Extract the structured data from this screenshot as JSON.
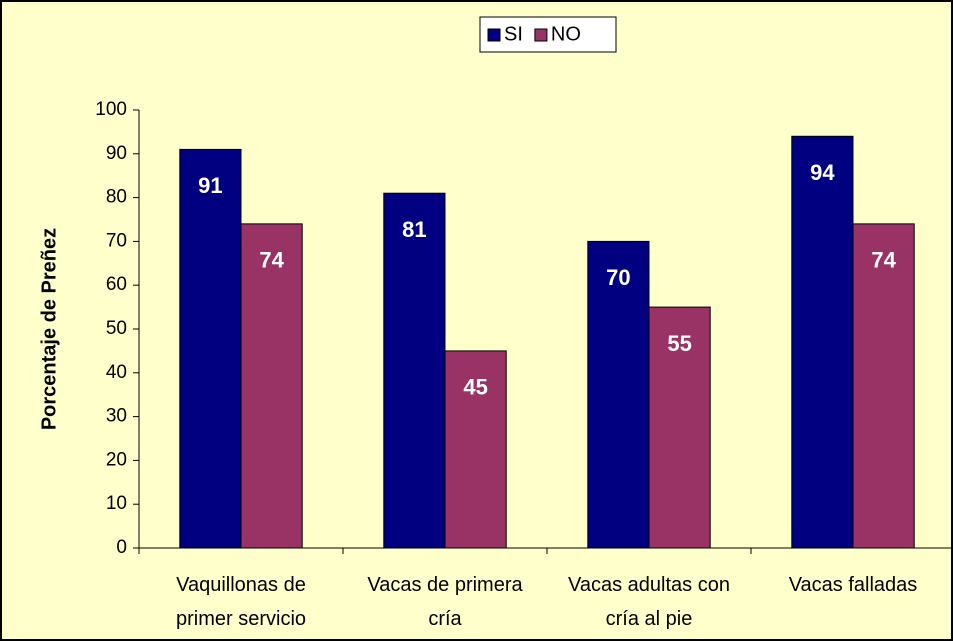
{
  "chart_data": {
    "type": "bar",
    "y_label": "Porcentaje de Preñez",
    "categories": [
      "Vaquillonas de primer servicio",
      "Vacas de primera cría",
      "Vacas adultas con cría al pie",
      "Vacas falladas"
    ],
    "series": [
      {
        "name": "SI",
        "color": "#000080",
        "values": [
          91,
          81,
          70,
          94
        ]
      },
      {
        "name": "NO",
        "color": "#993366",
        "values": [
          74,
          45,
          55,
          74
        ]
      }
    ],
    "ylim": [
      0,
      100
    ],
    "yticks": [
      0,
      10,
      20,
      30,
      40,
      50,
      60,
      70,
      80,
      90,
      100
    ],
    "legend": "top",
    "grid": false
  }
}
